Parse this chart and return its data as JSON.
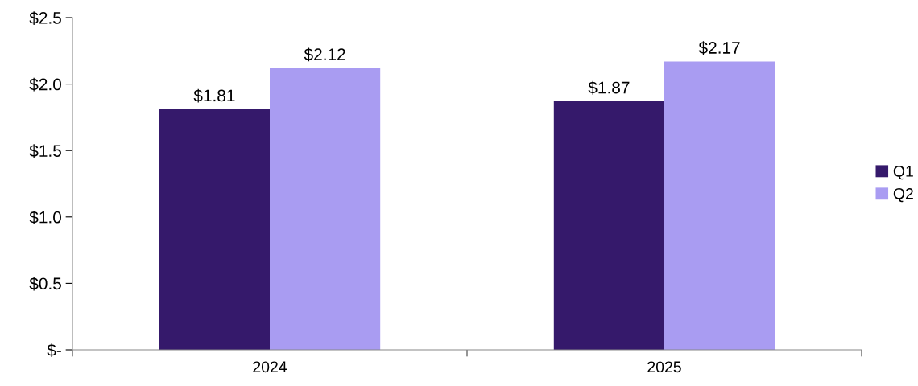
{
  "chart_data": {
    "type": "bar",
    "categories": [
      "2024",
      "2025"
    ],
    "series": [
      {
        "name": "Q1",
        "color": "#35196b",
        "values": [
          1.81,
          1.87
        ],
        "value_labels": [
          "$1.81",
          "$1.87"
        ]
      },
      {
        "name": "Q2",
        "color": "#a99cf2",
        "values": [
          2.12,
          2.17
        ],
        "value_labels": [
          "$2.12",
          "$2.17"
        ]
      }
    ],
    "ylim": [
      0,
      2.5
    ],
    "yticks": [
      {
        "value": 0,
        "label": "$-"
      },
      {
        "value": 0.5,
        "label": "$0.5"
      },
      {
        "value": 1.0,
        "label": "$1.0"
      },
      {
        "value": 1.5,
        "label": "$1.5"
      },
      {
        "value": 2.0,
        "label": "$2.0"
      },
      {
        "value": 2.5,
        "label": "$2.5"
      }
    ],
    "grid": false,
    "legend": "right"
  }
}
